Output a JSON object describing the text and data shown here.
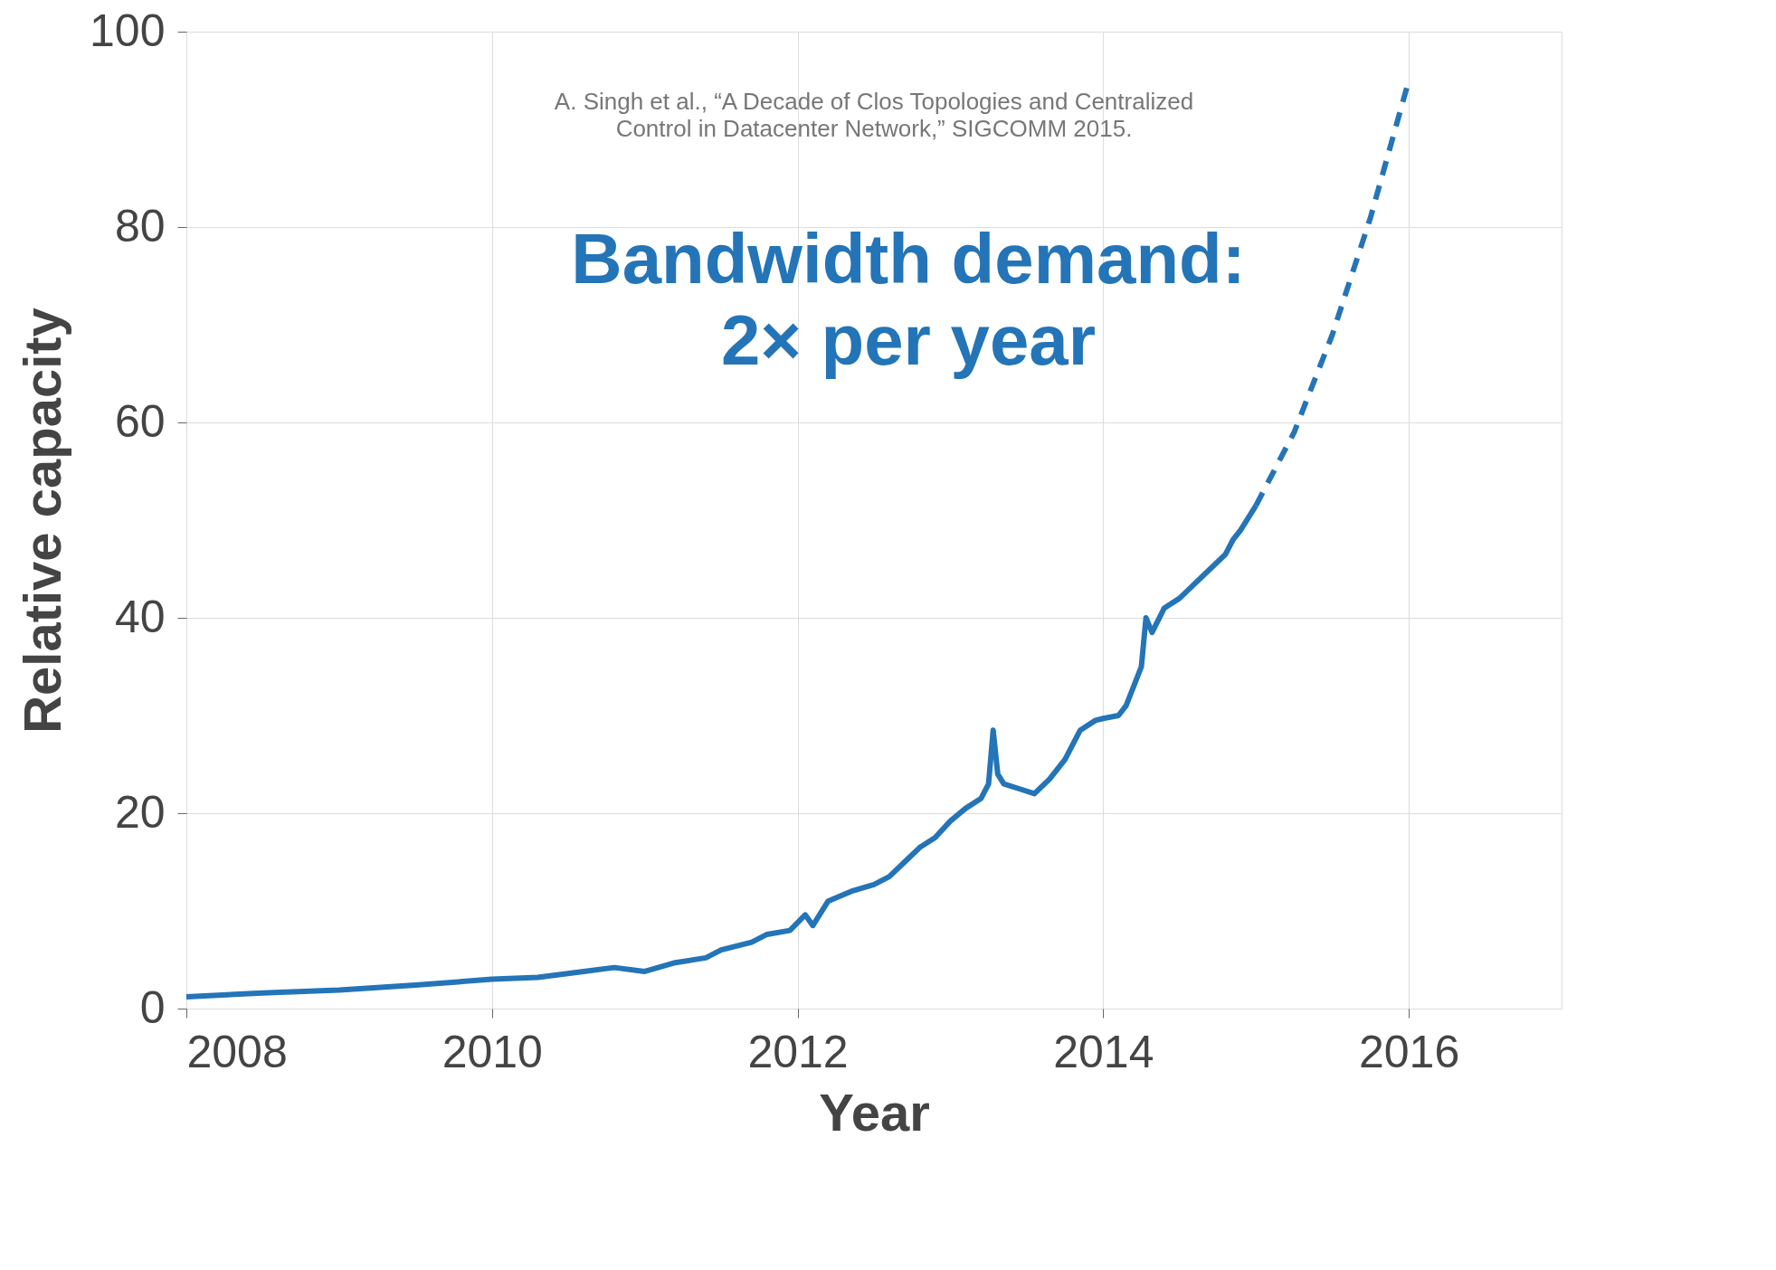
{
  "chart_data": {
    "type": "line",
    "xlabel": "Year",
    "ylabel": "Relative capacity",
    "annotations": [
      "A. Singh et al., “A Decade of Clos Topologies and Centralized\nControl in Datacenter Network,” SIGCOMM 2015.",
      "Bandwidth demand:\n2× per year"
    ],
    "series": [
      {
        "color": "#2474b8",
        "line_style": "solid",
        "x": [
          2008.0,
          2008.5,
          2009.0,
          2009.5,
          2010.0,
          2010.3,
          2010.6,
          2010.8,
          2011.0,
          2011.2,
          2011.4,
          2011.5,
          2011.7,
          2011.8,
          2011.95,
          2012.05,
          2012.1,
          2012.2,
          2012.35,
          2012.5,
          2012.6,
          2012.7,
          2012.8,
          2012.9,
          2013.0,
          2013.1,
          2013.2,
          2013.25,
          2013.28,
          2013.31,
          2013.35,
          2013.45,
          2013.55,
          2013.65,
          2013.75,
          2013.85,
          2013.95,
          2014.0,
          2014.1,
          2014.15,
          2014.2,
          2014.25,
          2014.28,
          2014.32,
          2014.4,
          2014.5,
          2014.6,
          2014.7,
          2014.8,
          2014.85,
          2014.9,
          2015.0
        ],
        "values": [
          1.2,
          1.6,
          1.9,
          2.4,
          3.0,
          3.2,
          3.8,
          4.2,
          3.8,
          4.7,
          5.2,
          6.0,
          6.8,
          7.6,
          8.0,
          9.6,
          8.5,
          11.0,
          12.0,
          12.7,
          13.5,
          15.0,
          16.5,
          17.5,
          19.2,
          20.5,
          21.5,
          23.0,
          28.5,
          24.0,
          23.0,
          22.5,
          22.0,
          23.5,
          25.5,
          28.5,
          29.5,
          29.7,
          30.0,
          31.0,
          33.0,
          35.0,
          40.0,
          38.5,
          41.0,
          42.0,
          43.5,
          45.0,
          46.5,
          48.0,
          49.0,
          51.5
        ]
      },
      {
        "color": "#2474b8",
        "line_style": "dashed",
        "x": [
          2015.0,
          2015.25,
          2015.5,
          2015.75,
          2016.0
        ],
        "values": [
          51.5,
          59.0,
          69.0,
          81.0,
          95.0
        ]
      }
    ],
    "xlim": [
      2008,
      2017
    ],
    "xticks": [
      2008,
      2010,
      2012,
      2014,
      2016
    ],
    "ylim": [
      0,
      100
    ],
    "yticks": [
      0,
      20,
      40,
      60,
      80,
      100
    ],
    "grid": true
  }
}
